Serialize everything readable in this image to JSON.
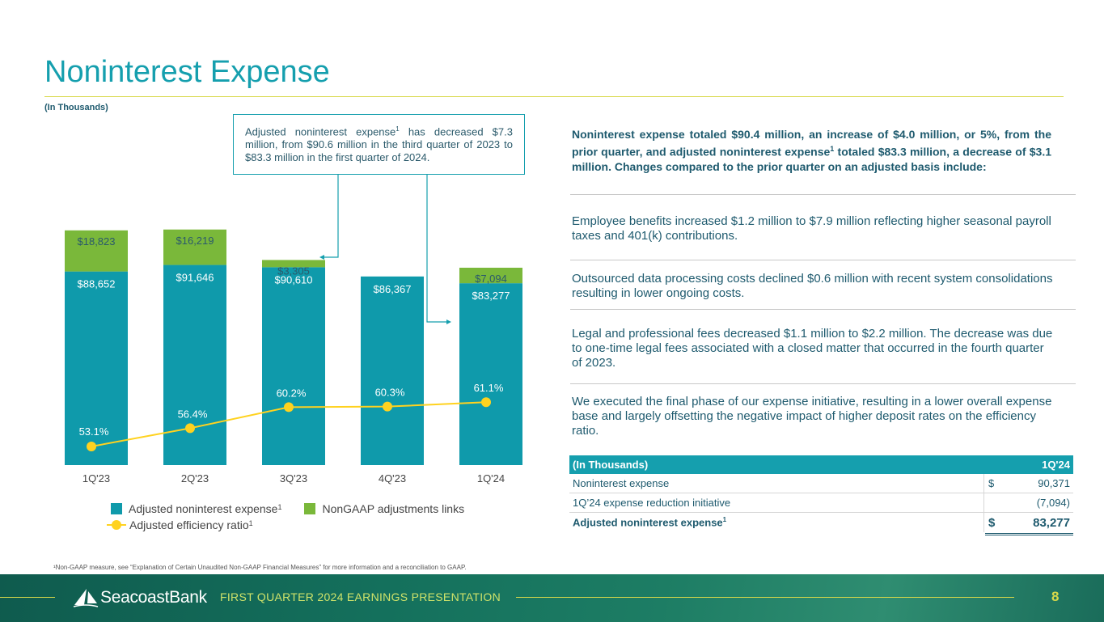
{
  "slide": {
    "title": "Noninterest Expense",
    "units_label": "(In Thousands)",
    "page_number": "8",
    "footer_title": "FIRST QUARTER 2024 EARNINGS PRESENTATION",
    "logo_text": "SeacoastBank",
    "footnote": "¹Non-GAAP measure, see “Explanation of Certain Unaudited Non-GAAP Financial Measures” for more information and a reconciliation to GAAP."
  },
  "callout": {
    "text_before": "Adjusted noninterest expense",
    "sup": "1",
    "text_after": " has decreased $7.3 million, from $90.6 million in the third quarter of 2023 to $83.3 million in the first quarter of 2024."
  },
  "legend": {
    "adjusted_label": "Adjusted noninterest expense",
    "adjusted_sup": "1",
    "nongaap_label": "NonGAAP adjustments links",
    "ratio_label": "Adjusted efficiency ratio",
    "ratio_sup": "1"
  },
  "chart_data": {
    "type": "bar",
    "stacked": true,
    "categories": [
      "1Q'23",
      "2Q'23",
      "3Q'23",
      "4Q'23",
      "1Q'24"
    ],
    "series": [
      {
        "name": "Adjusted noninterest expense",
        "color": "#0f9aab",
        "values": [
          88652,
          91646,
          90610,
          86367,
          83277
        ],
        "labels": [
          "$88,652",
          "$91,646",
          "$90,610",
          "$86,367",
          "$83,277"
        ]
      },
      {
        "name": "NonGAAP adjustments links",
        "color": "#7ab83a",
        "values": [
          18823,
          16219,
          3305,
          null,
          7094
        ],
        "labels": [
          "$18,823",
          "$16,219",
          "$3,305",
          "",
          "$7,094"
        ]
      }
    ],
    "line_series": {
      "name": "Adjusted efficiency ratio",
      "color": "#ffd21f",
      "values": [
        53.1,
        56.4,
        60.2,
        60.3,
        61.1
      ],
      "labels": [
        "53.1%",
        "56.4%",
        "60.2%",
        "60.3%",
        "61.1%"
      ]
    },
    "grid": false,
    "legend_position": "bottom"
  },
  "summary": {
    "text_before": "Noninterest expense totaled $90.4 million, an increase of $4.0 million, or 5%, from the prior quarter, and adjusted noninterest expense",
    "sup": "1",
    "text_after": " totaled $83.3 million, a decrease of $3.1 million. Changes compared to the prior quarter on an adjusted basis include:"
  },
  "bullets": [
    "Employee benefits increased $1.2 million to $7.9 million reflecting higher seasonal payroll taxes and 401(k) contributions.",
    "Outsourced data processing costs declined $0.6 million with recent system consolidations resulting in lower ongoing costs.",
    "Legal and professional fees decreased $1.1 million to $2.2 million. The decrease was due to one-time legal fees associated with a closed matter that occurred in the fourth quarter of 2023.",
    "We executed the final phase of our expense initiative, resulting in a lower overall expense base and largely offsetting the negative impact of higher deposit rates on the efficiency ratio."
  ],
  "table": {
    "header_label": "(In Thousands)",
    "header_period": "1Q'24",
    "rows": [
      {
        "label": "Noninterest expense",
        "currency": "$",
        "value": "90,371"
      },
      {
        "label": "1Q’24 expense reduction initiative",
        "currency": "",
        "value": "(7,094)"
      }
    ],
    "total": {
      "label": "Adjusted noninterest expense",
      "sup": "1",
      "currency": "$",
      "value": "83,277"
    }
  },
  "colors": {
    "accent": "#159fae",
    "bar_teal": "#0f9aab",
    "bar_green": "#7ab83a",
    "line_yellow": "#ffd21f",
    "rule_yellow": "#d8d94a"
  }
}
